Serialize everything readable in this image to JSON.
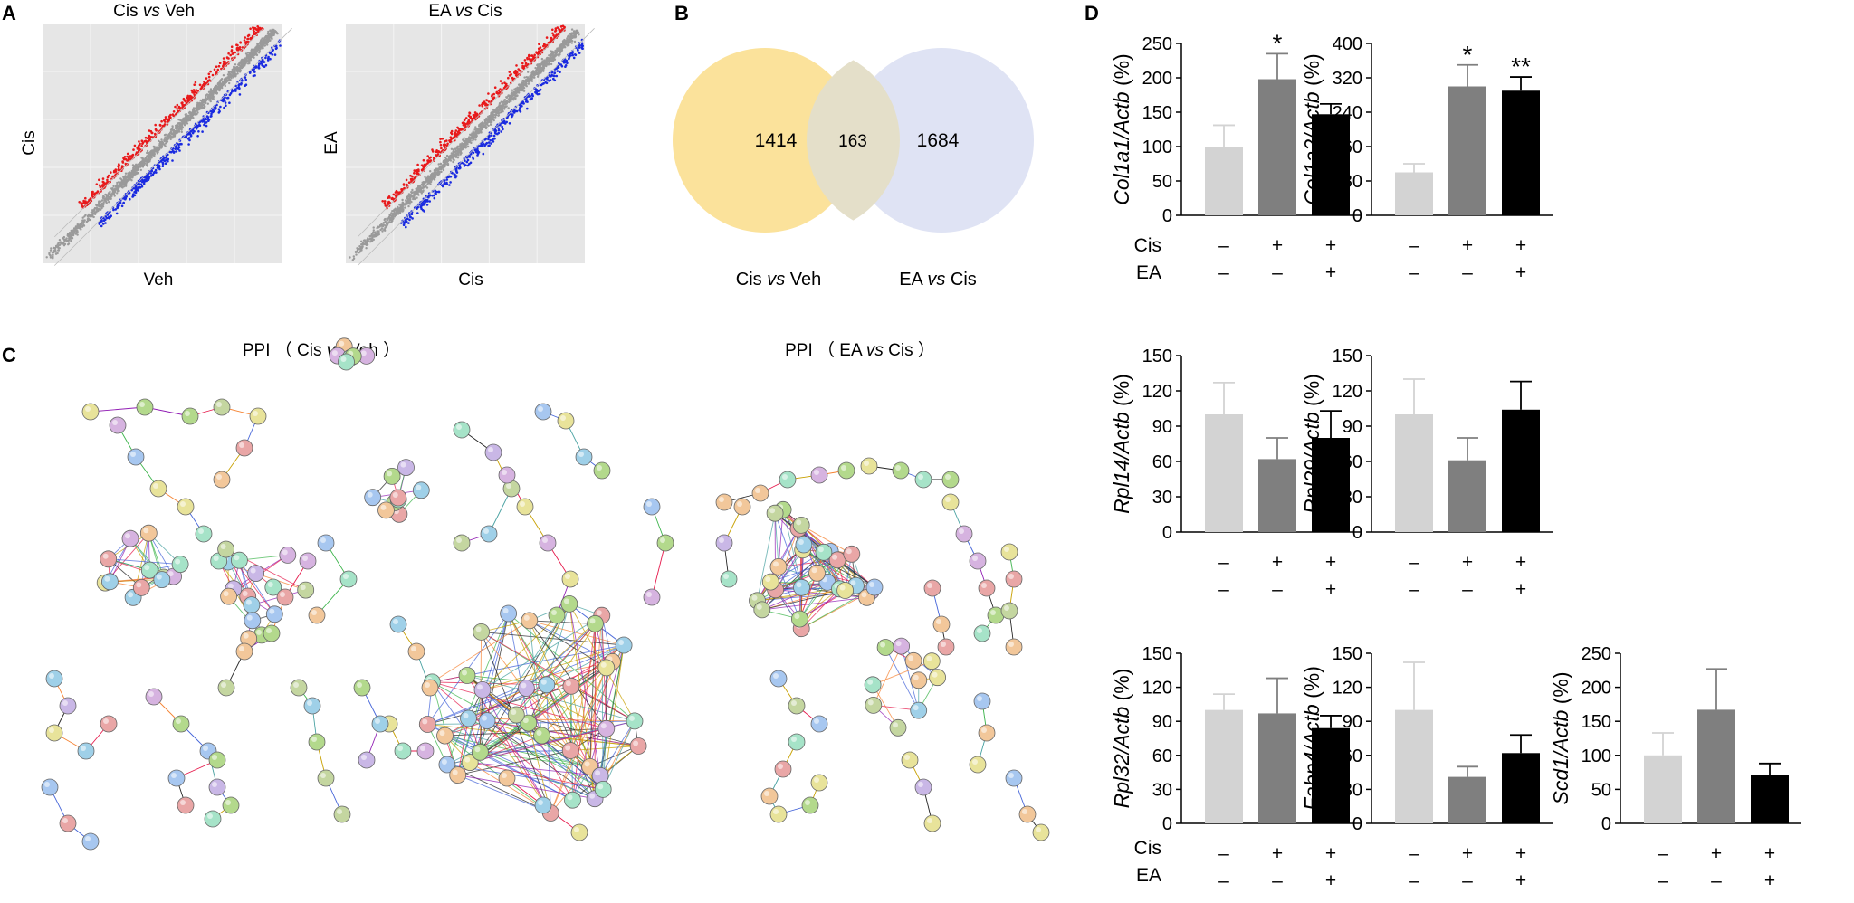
{
  "panel_letters": {
    "a": "A",
    "b": "B",
    "c": "C",
    "d": "D"
  },
  "panel_a": {
    "scatter1": {
      "title": "Cis vs Veh",
      "t1": "Cis ",
      "t2": "vs",
      "t3": " Veh",
      "xlabel": "Veh",
      "ylabel": "Cis"
    },
    "scatter2": {
      "title": "EA vs Cis",
      "t1": "EA ",
      "t2": "vs",
      "t3": " Cis",
      "xlabel": "Cis",
      "ylabel": "EA"
    },
    "colors": {
      "up": "#e8191b",
      "down": "#1a2ae0",
      "ns": "#9a9a9a",
      "bg": "#e6e6e6"
    }
  },
  "panel_b": {
    "left_only": "1414",
    "overlap": "163",
    "right_only": "1684",
    "left_label": {
      "t1": "Cis ",
      "t2": "vs",
      "t3": " Veh"
    },
    "right_label": {
      "t1": "EA ",
      "t2": "vs",
      "t3": " Cis"
    },
    "colors": {
      "left": "#fbe29b",
      "right": "#d9def2"
    }
  },
  "panel_c": {
    "title1": {
      "t1": "PPI （ Cis ",
      "t2": "vs",
      "t3": " Veh ）"
    },
    "title2": {
      "t1": "PPI （ EA ",
      "t2": "vs",
      "t3": " Cis ）"
    }
  },
  "panel_d": {
    "row_labels": {
      "cis": "Cis",
      "ea": "EA"
    },
    "treatments": {
      "cis": [
        "–",
        "+",
        "+"
      ],
      "ea": [
        "–",
        "–",
        "+"
      ]
    },
    "colors": {
      "veh": "#d3d3d3",
      "cis": "#7f7f7f",
      "ea": "#000000"
    },
    "chart_data": [
      {
        "type": "bar",
        "gene": "Col1a1",
        "ylabel_gene": "Col1a1/Actb",
        "ylabel_unit": " (%)",
        "categories": [
          "Veh",
          "Cis",
          "Cis+EA"
        ],
        "values": [
          100,
          198,
          147
        ],
        "errors": [
          31,
          37,
          15
        ],
        "sig": [
          "",
          "*",
          ""
        ],
        "ylim": [
          0,
          250
        ],
        "ticks": [
          0,
          50,
          100,
          150,
          200,
          250
        ]
      },
      {
        "type": "bar",
        "gene": "Col1a2",
        "ylabel_gene": "Col1a2/Actb",
        "ylabel_unit": " (%)",
        "categories": [
          "Veh",
          "Cis",
          "Cis+EA"
        ],
        "values": [
          100,
          300,
          290
        ],
        "errors": [
          20,
          50,
          32
        ],
        "sig": [
          "",
          "*",
          "**"
        ],
        "ylim": [
          0,
          400
        ],
        "ticks": [
          0,
          80,
          160,
          240,
          320,
          400
        ]
      },
      {
        "type": "bar",
        "gene": "Rpl14",
        "ylabel_gene": "Rpl14/Actb",
        "ylabel_unit": " (%)",
        "categories": [
          "Veh",
          "Cis",
          "Cis+EA"
        ],
        "values": [
          100,
          62,
          80
        ],
        "errors": [
          27,
          18,
          23
        ],
        "sig": [
          "",
          "",
          ""
        ],
        "ylim": [
          0,
          150
        ],
        "ticks": [
          0,
          30,
          60,
          90,
          120,
          150
        ]
      },
      {
        "type": "bar",
        "gene": "Rpl29",
        "ylabel_gene": "Rpl29/Actb",
        "ylabel_unit": " (%)",
        "categories": [
          "Veh",
          "Cis",
          "Cis+EA"
        ],
        "values": [
          100,
          61,
          104
        ],
        "errors": [
          30,
          19,
          24
        ],
        "sig": [
          "",
          "",
          ""
        ],
        "ylim": [
          0,
          150
        ],
        "ticks": [
          0,
          30,
          60,
          90,
          120,
          150
        ]
      },
      {
        "type": "bar",
        "gene": "Rpl32",
        "ylabel_gene": "Rpl32/Actb",
        "ylabel_unit": " (%)",
        "categories": [
          "Veh",
          "Cis",
          "Cis+EA"
        ],
        "values": [
          100,
          97,
          84
        ],
        "errors": [
          14,
          31,
          11
        ],
        "sig": [
          "",
          "",
          ""
        ],
        "ylim": [
          0,
          150
        ],
        "ticks": [
          0,
          30,
          60,
          90,
          120,
          150
        ]
      },
      {
        "type": "bar",
        "gene": "Fabp4",
        "ylabel_gene": "Fabp4/Actb",
        "ylabel_unit": " (%)",
        "categories": [
          "Veh",
          "Cis",
          "Cis+EA"
        ],
        "values": [
          100,
          41,
          62
        ],
        "errors": [
          42,
          9,
          16
        ],
        "sig": [
          "",
          "",
          ""
        ],
        "ylim": [
          0,
          150
        ],
        "ticks": [
          0,
          30,
          60,
          90,
          120,
          150
        ]
      },
      {
        "type": "bar",
        "gene": "Scd1",
        "ylabel_gene": "Scd1/Actb",
        "ylabel_unit": " (%)",
        "categories": [
          "Veh",
          "Cis",
          "Cis+EA"
        ],
        "values": [
          100,
          167,
          71
        ],
        "errors": [
          33,
          60,
          17
        ],
        "sig": [
          "",
          "",
          ""
        ],
        "ylim": [
          0,
          250
        ],
        "ticks": [
          0,
          50,
          100,
          150,
          200,
          250
        ]
      }
    ]
  }
}
